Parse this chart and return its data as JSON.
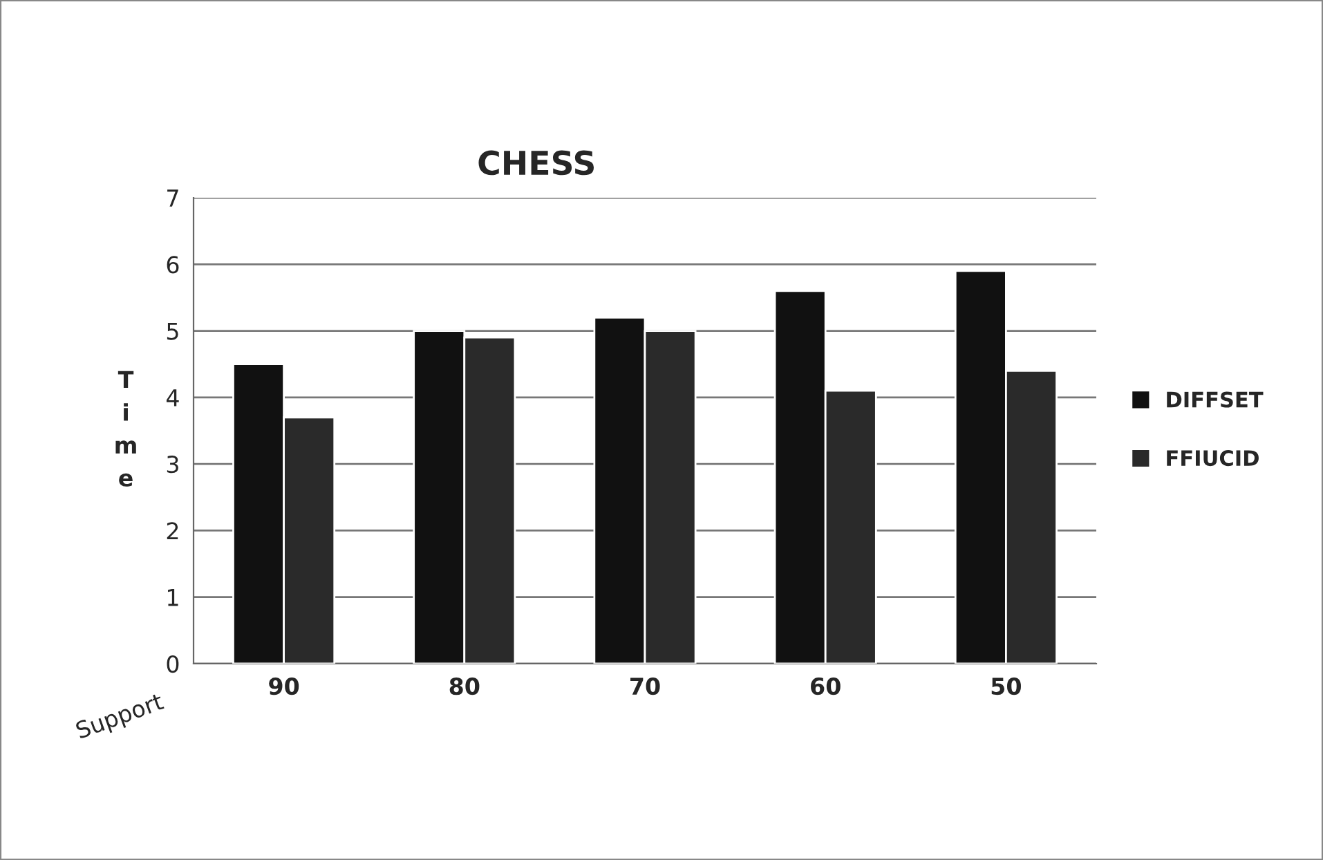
{
  "chart_data": {
    "type": "bar",
    "title": "CHESS",
    "xlabel": "Support",
    "ylabel": "Time",
    "categories": [
      "90",
      "80",
      "70",
      "60",
      "50"
    ],
    "series": [
      {
        "name": "DIFFSET",
        "color": "#111111",
        "values": [
          4.5,
          5.0,
          5.2,
          5.6,
          5.9
        ]
      },
      {
        "name": "FFIUCID",
        "color": "#2a2a2a",
        "values": [
          3.7,
          4.9,
          5.0,
          4.1,
          4.4
        ]
      }
    ],
    "ylim": [
      0,
      7
    ],
    "yticks": [
      0,
      1,
      2,
      3,
      4,
      5,
      6,
      7
    ],
    "grid": "y",
    "legend": "right"
  }
}
